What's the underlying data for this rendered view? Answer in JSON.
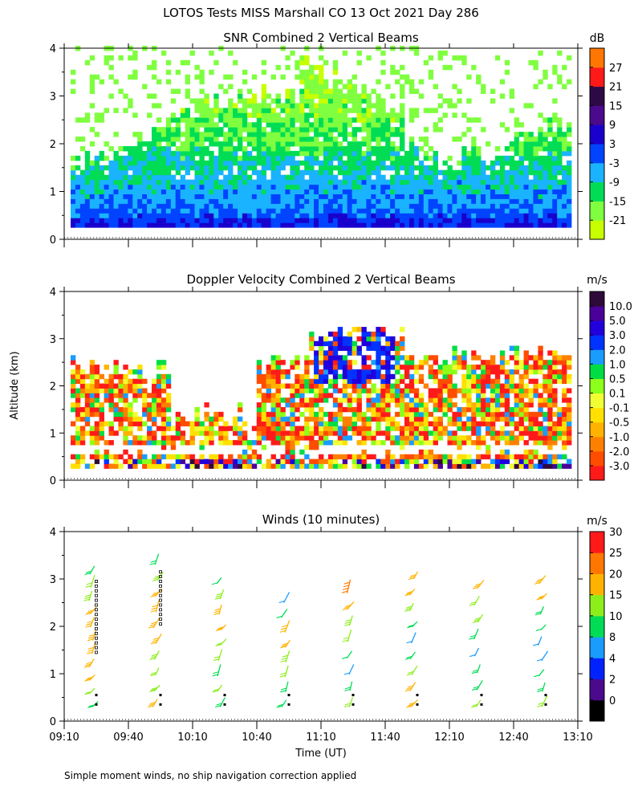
{
  "figure": {
    "title": "LOTOS Tests MISS Marshall CO  13 Oct 2021 Day 286",
    "shared_ylabel": "Altitude (km)",
    "shared_xlabel": "Time (UT)",
    "footnote": "Simple moment winds, no ship navigation correction applied"
  },
  "colors": {
    "snr": [
      "#c8ff00",
      "#7fff3f",
      "#00dd55",
      "#1ab3ff",
      "#0044ff",
      "#1a00cc",
      "#4b0a8c",
      "#2d0a46",
      "#ff1a1a",
      "#ff7700",
      "#ffc000"
    ],
    "velocity": [
      "#ff1a1a",
      "#ff4d00",
      "#ff8000",
      "#ffb300",
      "#ffe000",
      "#f0ff33",
      "#8cff1a",
      "#00dd44",
      "#1a9cff",
      "#0033ff",
      "#2200dd",
      "#4a0099",
      "#2e0a3a"
    ],
    "winds": [
      "#000000",
      "#4b0a8c",
      "#0022ff",
      "#1a9cff",
      "#00dd55",
      "#8cee1a",
      "#ffb300",
      "#ff7700",
      "#ff1a1a"
    ]
  },
  "chart_data": [
    {
      "type": "heatmap",
      "title": "SNR Combined 2 Vertical Beams",
      "xlabel": "",
      "ylabel": "",
      "xlim": [
        550,
        790
      ],
      "ylim": [
        0,
        4
      ],
      "yticks": [
        0,
        1,
        2,
        3,
        4
      ],
      "xticks": [
        550,
        580,
        610,
        640,
        670,
        700,
        730,
        760,
        790
      ],
      "colorbar": {
        "unit": "dB",
        "levels": [
          -21,
          -15,
          -9,
          -3,
          3,
          9,
          15,
          21,
          27
        ],
        "tick_labels": [
          "-21",
          "-15",
          "-9",
          "-3",
          "3",
          "9",
          "15",
          "21",
          "27"
        ]
      },
      "profile": {
        "altitude_km": [
          0.3,
          0.6,
          1.0,
          1.5,
          2.0,
          2.5,
          3.0,
          3.5,
          3.9
        ],
        "typical_snr_db": [
          3,
          -3,
          -6,
          -10,
          -14,
          -17,
          -19,
          -20,
          -21
        ]
      }
    },
    {
      "type": "heatmap",
      "title": "Doppler Velocity Combined 2 Vertical Beams",
      "xlabel": "",
      "ylabel": "Altitude (km)",
      "xlim": [
        550,
        790
      ],
      "ylim": [
        0,
        4
      ],
      "yticks": [
        0,
        1,
        2,
        3,
        4
      ],
      "xticks": [
        550,
        580,
        610,
        640,
        670,
        700,
        730,
        760,
        790
      ],
      "colorbar": {
        "unit": "m/s",
        "levels": [
          -3.0,
          -2.0,
          -1.0,
          -0.5,
          -0.1,
          0.1,
          0.5,
          1.0,
          2.0,
          3.0,
          5.0,
          10.0
        ],
        "tick_labels": [
          "-3.0",
          "-2.0",
          "-1.0",
          "-0.5",
          "-0.1",
          "0.1",
          "0.5",
          "1.0",
          "2.0",
          "3.0",
          "5.0",
          "10.0"
        ]
      },
      "upward_core": {
        "time_min": [
          667,
          705
        ],
        "altitude_km": [
          2.0,
          3.2
        ],
        "velocity_ms": 2.5
      }
    },
    {
      "type": "scatter",
      "title": "Winds (10 minutes)",
      "xlabel": "Time (UT)",
      "ylabel": "",
      "xlim": [
        550,
        790
      ],
      "ylim": [
        0,
        4
      ],
      "yticks": [
        0,
        1,
        2,
        3,
        4
      ],
      "xticks": [
        550,
        580,
        610,
        640,
        670,
        700,
        730,
        760,
        790
      ],
      "xtick_labels": [
        "09:10",
        "09:40",
        "10:10",
        "10:40",
        "11:10",
        "11:40",
        "12:10",
        "12:40",
        "13:10"
      ],
      "colorbar": {
        "unit": "m/s",
        "levels": [
          0,
          2,
          4,
          8,
          10,
          15,
          20,
          25,
          30
        ],
        "tick_labels": [
          "0",
          "2",
          "4",
          "8",
          "10",
          "15",
          "20",
          "25",
          "30"
        ]
      },
      "profile_times_min": [
        565,
        595,
        625,
        655,
        685,
        715,
        745,
        775
      ],
      "profiles": [
        {
          "time": 565,
          "top_km": 3.1,
          "speeds": [
            14,
            16,
            20,
            22,
            23,
            24,
            22,
            20,
            18,
            16,
            14
          ]
        },
        {
          "time": 595,
          "top_km": 3.3,
          "speeds": [
            20,
            18,
            16,
            19,
            22,
            24,
            22,
            20,
            18,
            12
          ]
        },
        {
          "time": 625,
          "top_km": 2.9,
          "speeds": [
            14,
            16,
            14,
            16,
            15,
            24,
            22,
            18,
            10
          ]
        },
        {
          "time": 655,
          "top_km": 2.5,
          "speeds": [
            12,
            14,
            15,
            18,
            22,
            20,
            10,
            8
          ]
        },
        {
          "time": 685,
          "top_km": 2.7,
          "speeds": [
            16,
            12,
            8,
            10,
            16,
            18,
            24,
            28
          ]
        },
        {
          "time": 715,
          "top_km": 3.0,
          "speeds": [
            22,
            24,
            16,
            12,
            8,
            14,
            18,
            22,
            24
          ]
        },
        {
          "time": 745,
          "top_km": 2.8,
          "speeds": [
            16,
            14,
            12,
            8,
            12,
            18,
            16,
            20
          ]
        },
        {
          "time": 775,
          "top_km": 2.9,
          "speeds": [
            16,
            14,
            10,
            9,
            8,
            10,
            12,
            20,
            24
          ]
        }
      ]
    }
  ]
}
